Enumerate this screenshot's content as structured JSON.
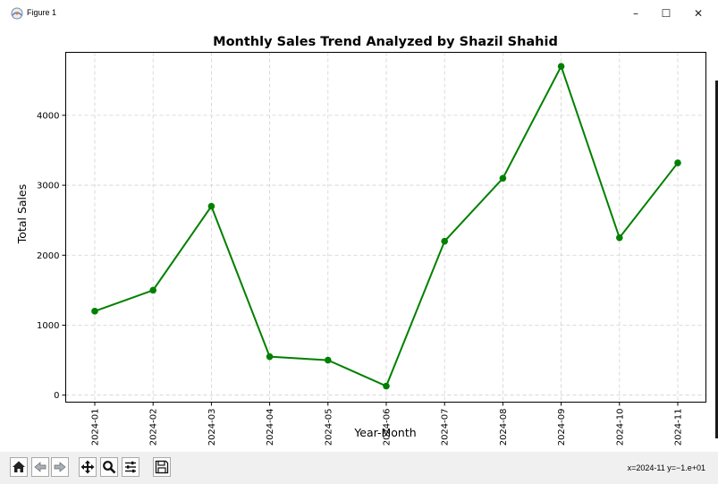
{
  "window": {
    "title": "Figure 1",
    "minimize_glyph": "–",
    "maximize_glyph": "☐",
    "close_glyph": "✕"
  },
  "toolbar": {
    "buttons": [
      "home-icon",
      "back-arrow-icon",
      "forward-arrow-icon",
      "pan-icon",
      "zoom-icon",
      "subplots-icon",
      "save-icon"
    ],
    "coordinates": "x=2024-11 y=−1.e+01"
  },
  "chart_data": {
    "type": "line",
    "title": "Monthly Sales Trend Analyzed by Shazil Shahid",
    "xlabel": "Year-Month",
    "ylabel": "Total Sales",
    "categories": [
      "2024-01",
      "2024-02",
      "2024-03",
      "2024-04",
      "2024-05",
      "2024-06",
      "2024-07",
      "2024-08",
      "2024-09",
      "2024-10",
      "2024-11"
    ],
    "values": [
      1200,
      1500,
      2700,
      550,
      500,
      130,
      2200,
      3100,
      4700,
      2250,
      3320
    ],
    "yticks": [
      0,
      1000,
      2000,
      3000,
      4000
    ],
    "ylim": [
      -100,
      4900
    ],
    "grid": true,
    "color": "#008000",
    "marker": "circle"
  }
}
